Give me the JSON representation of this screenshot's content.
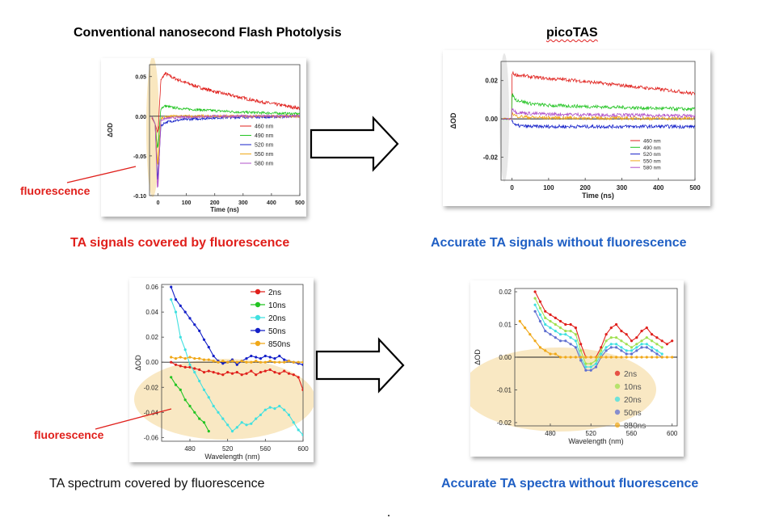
{
  "headings": {
    "left": "Conventional nanosecond Flash Photolysis",
    "right": "picoTAS"
  },
  "captions": {
    "top_left": "TA signals covered by fluorescence",
    "top_right": "Accurate TA signals without fluorescence",
    "bottom_left": "TA spectrum covered by fluorescence",
    "bottom_right": "Accurate TA spectra without fluorescence"
  },
  "annotations": {
    "fluorescence_top": "fluorescence",
    "fluorescence_bottom": "fluorescence"
  },
  "colors": {
    "red": "#e0201c",
    "green": "#22c422",
    "blue": "#1420c8",
    "orange": "#f0a818",
    "purple": "#b050c8",
    "cyan": "#40e0e0",
    "caption_red": "#e0201c",
    "caption_blue": "#1f5fc4",
    "highlight": "#f8e4b8"
  },
  "chart_data": [
    {
      "id": "ns_kinetics",
      "type": "line",
      "xlabel": "Time (ns)",
      "ylabel": "ΔOD",
      "xlim": [
        -30,
        500
      ],
      "ylim": [
        -0.1,
        0.065
      ],
      "xticks": [
        "0",
        "100",
        "200",
        "300",
        "400",
        "500"
      ],
      "xtick_values": [
        0,
        100,
        200,
        300,
        400,
        500
      ],
      "yticks": [
        "0.05",
        "0.00",
        "-0.05",
        "-0.10"
      ],
      "ytick_values": [
        0.05,
        0.0,
        -0.05,
        -0.1
      ],
      "legend_position": "center-right",
      "series": [
        {
          "name": "460 nm",
          "color": "#e0201c",
          "x": [
            0,
            10,
            25,
            50,
            100,
            150,
            200,
            250,
            300,
            350,
            400,
            450,
            500
          ],
          "y": [
            -0.02,
            0.045,
            0.054,
            0.049,
            0.042,
            0.036,
            0.031,
            0.027,
            0.023,
            0.019,
            0.016,
            0.013,
            0.01
          ]
        },
        {
          "name": "490 nm",
          "color": "#22c422",
          "x": [
            0,
            10,
            25,
            50,
            100,
            200,
            300,
            400,
            500
          ],
          "y": [
            -0.04,
            0.01,
            0.013,
            0.011,
            0.009,
            0.007,
            0.005,
            0.004,
            0.003
          ]
        },
        {
          "name": "520 nm",
          "color": "#1420c8",
          "x": [
            0,
            10,
            25,
            50,
            100,
            200,
            300,
            400,
            500
          ],
          "y": [
            -0.08,
            -0.012,
            -0.008,
            -0.006,
            -0.004,
            -0.002,
            -0.001,
            -0.001,
            0.0
          ]
        },
        {
          "name": "550 nm",
          "color": "#f0a818",
          "x": [
            0,
            10,
            25,
            50,
            100,
            200,
            300,
            400,
            500
          ],
          "y": [
            -0.06,
            -0.003,
            -0.001,
            0.0,
            0.0,
            0.0,
            0.0,
            0.0,
            0.0
          ]
        },
        {
          "name": "580 nm",
          "color": "#b050c8",
          "x": [
            0,
            10,
            25,
            50,
            100,
            200,
            300,
            400,
            500
          ],
          "y": [
            -0.09,
            -0.005,
            -0.003,
            -0.002,
            -0.001,
            0.0,
            0.0,
            0.0,
            0.0
          ]
        }
      ],
      "dip": {
        "x": [
          -20,
          -8,
          0,
          4,
          8,
          12,
          18,
          25
        ],
        "min_y": [
          -0.003,
          -0.02,
          -0.09,
          -0.095,
          -0.06,
          -0.02,
          -0.005,
          0.0
        ]
      }
    },
    {
      "id": "picotas_kinetics",
      "type": "line",
      "xlabel": "Time (ns)",
      "ylabel": "ΔOD",
      "xlim": [
        -30,
        500
      ],
      "ylim": [
        -0.032,
        0.03
      ],
      "xticks": [
        "0",
        "100",
        "200",
        "300",
        "400",
        "500"
      ],
      "xtick_values": [
        0,
        100,
        200,
        300,
        400,
        500
      ],
      "yticks": [
        "0.02",
        "0.00",
        "-0.02"
      ],
      "ytick_values": [
        0.02,
        0.0,
        -0.02
      ],
      "legend_position": "bottom-right",
      "series": [
        {
          "name": "460 nm",
          "color": "#e0201c",
          "x": [
            0,
            10,
            50,
            100,
            150,
            200,
            250,
            300,
            350,
            400,
            450,
            500
          ],
          "y": [
            0.024,
            0.023,
            0.022,
            0.021,
            0.0205,
            0.0195,
            0.0185,
            0.0175,
            0.0165,
            0.0155,
            0.0145,
            0.013
          ]
        },
        {
          "name": "490 nm",
          "color": "#22c422",
          "x": [
            0,
            10,
            50,
            100,
            200,
            300,
            400,
            500
          ],
          "y": [
            0.013,
            0.01,
            0.008,
            0.007,
            0.0065,
            0.006,
            0.0055,
            0.005
          ]
        },
        {
          "name": "520 nm",
          "color": "#1420c8",
          "x": [
            0,
            10,
            50,
            100,
            200,
            300,
            400,
            500
          ],
          "y": [
            -0.001,
            -0.0035,
            -0.004,
            -0.004,
            -0.004,
            -0.004,
            -0.004,
            -0.004
          ]
        },
        {
          "name": "550 nm",
          "color": "#f0a818",
          "x": [
            0,
            10,
            50,
            100,
            200,
            300,
            400,
            500
          ],
          "y": [
            0.003,
            0.0015,
            0.0008,
            0.0006,
            0.0005,
            0.0004,
            0.0003,
            0.0002
          ]
        },
        {
          "name": "580 nm",
          "color": "#b050c8",
          "x": [
            0,
            10,
            50,
            100,
            200,
            300,
            400,
            500
          ],
          "y": [
            0.006,
            0.0035,
            0.0028,
            0.0025,
            0.0022,
            0.002,
            0.0018,
            0.0015
          ]
        }
      ]
    },
    {
      "id": "ns_spectra",
      "type": "line",
      "xlabel": "Wavelength (nm)",
      "ylabel": "ΔOD",
      "xlim": [
        450,
        600
      ],
      "ylim": [
        -0.063,
        0.062
      ],
      "xticks": [
        "480",
        "520",
        "560",
        "600"
      ],
      "xtick_values": [
        480,
        520,
        560,
        600
      ],
      "yticks": [
        "0.06",
        "0.04",
        "0.02",
        "0.00",
        "-0.02",
        "-0.04",
        "-0.06"
      ],
      "ytick_values": [
        0.06,
        0.04,
        0.02,
        0.0,
        -0.02,
        -0.04,
        -0.06
      ],
      "legend_position": "top-right",
      "series": [
        {
          "name": "2ns",
          "color": "#e0201c",
          "x": [
            460,
            465,
            470,
            475,
            480,
            485,
            490,
            495,
            500,
            505,
            510,
            515,
            520,
            525,
            530,
            535,
            540,
            545,
            550,
            555,
            560,
            565,
            570,
            575,
            580,
            585,
            590,
            595,
            600
          ],
          "y": [
            0.0,
            -0.002,
            -0.003,
            -0.004,
            -0.004,
            -0.005,
            -0.006,
            -0.008,
            -0.007,
            -0.008,
            -0.009,
            -0.01,
            -0.008,
            -0.009,
            -0.008,
            -0.01,
            -0.009,
            -0.007,
            -0.01,
            -0.008,
            -0.007,
            -0.006,
            -0.008,
            -0.009,
            -0.007,
            -0.009,
            -0.01,
            -0.012,
            -0.022
          ]
        },
        {
          "name": "10ns",
          "color": "#22c422",
          "x": [
            460,
            465,
            470,
            475,
            480,
            485,
            490,
            495,
            500
          ],
          "y": [
            -0.012,
            -0.018,
            -0.022,
            -0.03,
            -0.035,
            -0.04,
            -0.045,
            -0.048,
            -0.055
          ]
        },
        {
          "name": "20ns",
          "color": "#40e0e0",
          "x": [
            460,
            465,
            470,
            475,
            480,
            485,
            490,
            495,
            500,
            505,
            510,
            515,
            520,
            525,
            530,
            535,
            540,
            545,
            550,
            555,
            560,
            565,
            570,
            575,
            580,
            585,
            590,
            595,
            600
          ],
          "y": [
            0.05,
            0.04,
            0.02,
            0.01,
            -0.002,
            -0.008,
            -0.015,
            -0.022,
            -0.028,
            -0.035,
            -0.04,
            -0.045,
            -0.05,
            -0.055,
            -0.052,
            -0.048,
            -0.05,
            -0.049,
            -0.045,
            -0.042,
            -0.038,
            -0.036,
            -0.037,
            -0.035,
            -0.038,
            -0.042,
            -0.048,
            -0.054,
            -0.058
          ]
        },
        {
          "name": "50ns",
          "color": "#1420c8",
          "x": [
            460,
            465,
            470,
            475,
            480,
            485,
            490,
            495,
            500,
            505,
            510,
            515,
            520,
            525,
            530,
            535,
            540,
            545,
            550,
            555,
            560,
            565,
            570,
            575,
            580,
            585,
            590,
            595,
            600
          ],
          "y": [
            0.06,
            0.05,
            0.045,
            0.04,
            0.035,
            0.03,
            0.025,
            0.018,
            0.012,
            0.005,
            0.001,
            -0.001,
            0.0,
            0.002,
            -0.002,
            0.001,
            0.003,
            0.005,
            0.004,
            0.003,
            0.005,
            0.004,
            0.003,
            0.005,
            0.002,
            0.001,
            0.0,
            -0.001,
            -0.002
          ]
        },
        {
          "name": "850ns",
          "color": "#f0a818",
          "x": [
            460,
            465,
            470,
            475,
            480,
            485,
            490,
            495,
            500,
            505,
            510,
            515,
            520,
            525,
            530,
            535,
            540,
            545,
            550,
            555,
            560,
            565,
            570,
            575,
            580,
            585,
            590,
            595,
            600
          ],
          "y": [
            0.004,
            0.003,
            0.004,
            0.003,
            0.004,
            0.003,
            0.003,
            0.002,
            0.002,
            0.001,
            0.0,
            0.001,
            0.0,
            0.001,
            0.0,
            0.001,
            0.0,
            0.0,
            0.001,
            0.0,
            0.0,
            0.001,
            0.0,
            0.0,
            0.0,
            0.001,
            0.0,
            0.0,
            0.0
          ]
        }
      ]
    },
    {
      "id": "picotas_spectra",
      "type": "line",
      "xlabel": "Wavelength (nm)",
      "ylabel": "ΔOD",
      "xlim": [
        445,
        605
      ],
      "ylim": [
        -0.021,
        0.021
      ],
      "xticks": [
        "480",
        "520",
        "560",
        "600"
      ],
      "xtick_values": [
        480,
        520,
        560,
        600
      ],
      "yticks": [
        "0.02",
        "0.01",
        "0.00",
        "-0.01",
        "-0.02"
      ],
      "ytick_values": [
        0.02,
        0.01,
        0.0,
        -0.01,
        -0.02
      ],
      "legend_position": "bottom-right",
      "series": [
        {
          "name": "2ns",
          "color": "#e0201c",
          "x": [
            465,
            470,
            475,
            480,
            485,
            490,
            495,
            500,
            505,
            510,
            515,
            520,
            525,
            530,
            535,
            540,
            545,
            550,
            555,
            560,
            565,
            570,
            575,
            580,
            585,
            590,
            595,
            600
          ],
          "y": [
            0.02,
            0.017,
            0.014,
            0.013,
            0.012,
            0.011,
            0.01,
            0.01,
            0.009,
            0.004,
            0.0,
            0.0,
            0.0,
            0.003,
            0.007,
            0.009,
            0.01,
            0.008,
            0.007,
            0.005,
            0.006,
            0.008,
            0.009,
            0.007,
            0.006,
            0.005,
            0.004,
            0.005
          ]
        },
        {
          "name": "10ns",
          "color": "#a0e050",
          "x": [
            465,
            470,
            475,
            480,
            485,
            490,
            495,
            500,
            505,
            510,
            515,
            520,
            525,
            530,
            535,
            540,
            545,
            550,
            555,
            560,
            565,
            570,
            575,
            580,
            585,
            590
          ],
          "y": [
            0.018,
            0.015,
            0.012,
            0.011,
            0.01,
            0.009,
            0.008,
            0.008,
            0.007,
            0.002,
            -0.002,
            -0.002,
            -0.001,
            0.002,
            0.005,
            0.006,
            0.006,
            0.005,
            0.004,
            0.003,
            0.004,
            0.005,
            0.006,
            0.005,
            0.004,
            0.003
          ]
        },
        {
          "name": "20ns",
          "color": "#40e0e0",
          "x": [
            465,
            470,
            475,
            480,
            485,
            490,
            495,
            500,
            505,
            510,
            515,
            520,
            525,
            530,
            535,
            540,
            545,
            550,
            555,
            560,
            565,
            570,
            575,
            580,
            585,
            590
          ],
          "y": [
            0.016,
            0.013,
            0.01,
            0.009,
            0.008,
            0.007,
            0.007,
            0.006,
            0.005,
            0.0,
            -0.003,
            -0.003,
            -0.002,
            0.001,
            0.003,
            0.004,
            0.004,
            0.003,
            0.002,
            0.002,
            0.003,
            0.004,
            0.004,
            0.003,
            0.002,
            0.001
          ]
        },
        {
          "name": "50ns",
          "color": "#6070d0",
          "x": [
            465,
            470,
            475,
            480,
            485,
            490,
            495,
            500,
            505,
            510,
            515,
            520,
            525,
            530,
            535,
            540,
            545,
            550,
            555,
            560,
            565,
            570,
            575,
            580,
            585,
            590
          ],
          "y": [
            0.014,
            0.011,
            0.008,
            0.007,
            0.006,
            0.005,
            0.005,
            0.004,
            0.003,
            -0.001,
            -0.004,
            -0.004,
            -0.003,
            0.0,
            0.002,
            0.003,
            0.003,
            0.002,
            0.001,
            0.001,
            0.002,
            0.003,
            0.003,
            0.002,
            0.001,
            0.0
          ]
        },
        {
          "name": "850ns",
          "color": "#f0a818",
          "x": [
            450,
            455,
            460,
            465,
            470,
            475,
            480,
            485,
            490,
            495,
            500,
            505,
            510,
            515,
            520,
            525,
            530,
            535,
            540,
            545,
            550,
            555,
            560,
            565,
            570,
            575,
            580,
            585,
            590,
            595,
            600
          ],
          "y": [
            0.011,
            0.009,
            0.007,
            0.005,
            0.003,
            0.002,
            0.001,
            0.001,
            0.0,
            0.0,
            0.0,
            0.0,
            0.0,
            0.0,
            0.0,
            0.0,
            0.0,
            0.0,
            0.0,
            0.0,
            0.0,
            0.0,
            0.0,
            0.0,
            0.0,
            0.0,
            0.0,
            0.0,
            0.0,
            0.0,
            0.0
          ]
        }
      ]
    }
  ]
}
